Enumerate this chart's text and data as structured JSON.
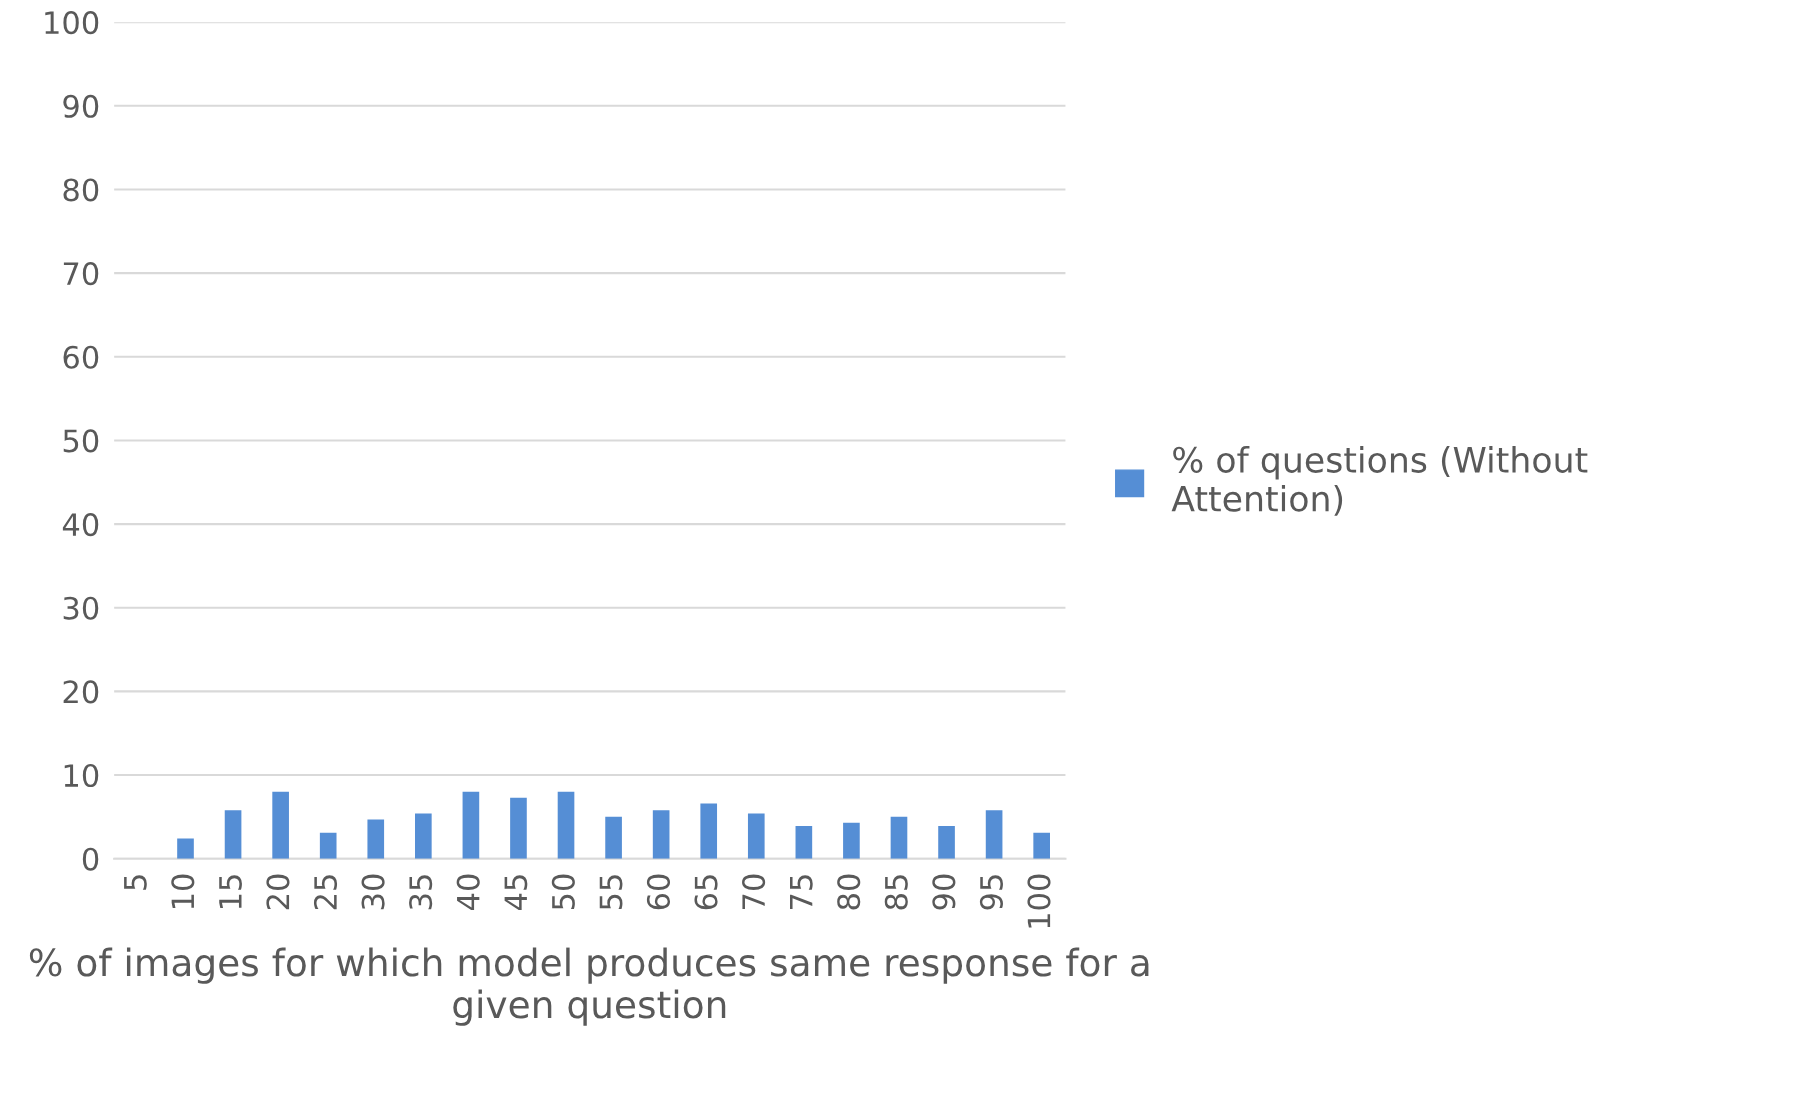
{
  "chart_data": {
    "type": "bar",
    "xlabel": "% of images for which model produces same response for a given question",
    "categories": [
      "5",
      "10",
      "15",
      "20",
      "25",
      "30",
      "35",
      "40",
      "45",
      "50",
      "55",
      "60",
      "65",
      "70",
      "75",
      "80",
      "85",
      "90",
      "95",
      "100"
    ],
    "series": [
      {
        "name": "% of questions (Without Attention)",
        "color": "#558ed5",
        "values": [
          0,
          2.4,
          5.8,
          8.0,
          3.1,
          4.7,
          5.4,
          8.0,
          7.3,
          8.0,
          5.0,
          5.8,
          6.6,
          5.4,
          3.9,
          4.3,
          5.0,
          3.9,
          5.8,
          3.1
        ]
      }
    ],
    "ylim": [
      0,
      100
    ],
    "yticks": [
      0,
      10,
      20,
      30,
      40,
      50,
      60,
      70,
      80,
      90,
      100
    ],
    "grid": "y",
    "legend": "right"
  }
}
